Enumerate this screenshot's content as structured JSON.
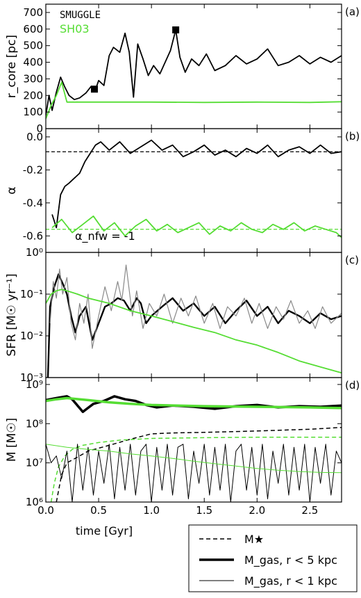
{
  "x_axis": {
    "label": "time [Gyr]",
    "ticks": [
      "0.0",
      "0.5",
      "1.0",
      "1.5",
      "2.0",
      "2.5"
    ],
    "tick_values": [
      0,
      0.5,
      1,
      1.5,
      2,
      2.5
    ],
    "range": [
      0,
      2.8
    ]
  },
  "colors": {
    "smuggle": "#000000",
    "sh03": "#55dd33",
    "smuggle_raw": "#888888"
  },
  "chart_data": [
    {
      "type": "line",
      "panel": "(a)",
      "ylabel": "r_core [pc]",
      "ylim": [
        0,
        750
      ],
      "yticks": [
        "0",
        "100",
        "200",
        "300",
        "400",
        "500",
        "600",
        "700"
      ],
      "ytick_values": [
        0,
        100,
        200,
        300,
        400,
        500,
        600,
        700
      ],
      "legend": [
        "SMUGGLE",
        "SH03"
      ],
      "series": [
        {
          "name": "SMUGGLE",
          "x": [
            0,
            0.03,
            0.06,
            0.1,
            0.14,
            0.18,
            0.22,
            0.27,
            0.32,
            0.38,
            0.43,
            0.47,
            0.5,
            0.55,
            0.6,
            0.64,
            0.7,
            0.75,
            0.79,
            0.83,
            0.87,
            0.92,
            0.97,
            1.02,
            1.08,
            1.13,
            1.18,
            1.23,
            1.27,
            1.32,
            1.38,
            1.45,
            1.52,
            1.6,
            1.7,
            1.8,
            1.9,
            2.0,
            2.1,
            2.2,
            2.3,
            2.4,
            2.5,
            2.6,
            2.7,
            2.8
          ],
          "y": [
            80,
            200,
            110,
            220,
            310,
            250,
            200,
            175,
            185,
            215,
            255,
            235,
            290,
            260,
            440,
            490,
            460,
            575,
            460,
            190,
            510,
            420,
            320,
            380,
            330,
            400,
            470,
            595,
            430,
            340,
            420,
            380,
            450,
            350,
            380,
            440,
            390,
            420,
            480,
            380,
            400,
            440,
            390,
            430,
            400,
            440
          ]
        },
        {
          "name": "SH03",
          "x": [
            0,
            0.05,
            0.1,
            0.15,
            0.2,
            0.3,
            0.5,
            1.0,
            1.5,
            2.0,
            2.5,
            2.8
          ],
          "y": [
            60,
            140,
            200,
            280,
            160,
            160,
            160,
            160,
            158,
            160,
            158,
            162
          ]
        }
      ],
      "markers": [
        {
          "x": 0.46,
          "y": 238
        },
        {
          "x": 1.23,
          "y": 595
        }
      ]
    },
    {
      "type": "line",
      "panel": "(b)",
      "ylabel": "α",
      "ylim": [
        -0.7,
        0.05
      ],
      "yticks": [
        "0.0",
        "-0.2",
        "-0.4",
        "-0.6"
      ],
      "ytick_values": [
        0,
        -0.2,
        -0.4,
        -0.6
      ],
      "annotation": "α_nfw = -1",
      "reference_lines": [
        {
          "name": "SMUGGLE mean",
          "y": -0.09
        },
        {
          "name": "SH03 mean",
          "y": -0.56
        }
      ],
      "series": [
        {
          "name": "SMUGGLE",
          "x": [
            0.06,
            0.1,
            0.14,
            0.18,
            0.22,
            0.27,
            0.32,
            0.37,
            0.42,
            0.47,
            0.52,
            0.6,
            0.7,
            0.8,
            0.9,
            1.0,
            1.1,
            1.2,
            1.3,
            1.4,
            1.5,
            1.6,
            1.7,
            1.8,
            1.9,
            2.0,
            2.1,
            2.2,
            2.3,
            2.4,
            2.5,
            2.6,
            2.7,
            2.8
          ],
          "y": [
            -0.47,
            -0.55,
            -0.35,
            -0.3,
            -0.28,
            -0.25,
            -0.22,
            -0.15,
            -0.1,
            -0.05,
            -0.03,
            -0.08,
            -0.03,
            -0.1,
            -0.06,
            -0.02,
            -0.08,
            -0.05,
            -0.12,
            -0.09,
            -0.05,
            -0.11,
            -0.08,
            -0.12,
            -0.07,
            -0.1,
            -0.05,
            -0.12,
            -0.08,
            -0.06,
            -0.1,
            -0.05,
            -0.1,
            -0.09
          ]
        },
        {
          "name": "SH03",
          "x": [
            0.06,
            0.15,
            0.25,
            0.35,
            0.45,
            0.55,
            0.65,
            0.75,
            0.85,
            0.95,
            1.05,
            1.15,
            1.25,
            1.35,
            1.45,
            1.55,
            1.65,
            1.75,
            1.85,
            1.95,
            2.05,
            2.15,
            2.25,
            2.35,
            2.45,
            2.55,
            2.65,
            2.75,
            2.8
          ],
          "y": [
            -0.55,
            -0.5,
            -0.58,
            -0.53,
            -0.48,
            -0.57,
            -0.52,
            -0.6,
            -0.54,
            -0.5,
            -0.57,
            -0.53,
            -0.58,
            -0.55,
            -0.52,
            -0.59,
            -0.54,
            -0.57,
            -0.52,
            -0.56,
            -0.58,
            -0.53,
            -0.56,
            -0.52,
            -0.57,
            -0.54,
            -0.56,
            -0.58,
            -0.61
          ]
        }
      ]
    },
    {
      "type": "line",
      "panel": "(c)",
      "ylabel": "SFR [M☉ yr⁻¹]",
      "yscale": "log",
      "ylim": [
        0.001,
        1
      ],
      "yticks": [
        "10⁰",
        "10⁻¹",
        "10⁻²",
        "10⁻³"
      ],
      "ytick_values": [
        1,
        0.1,
        0.01,
        0.001
      ],
      "series": [
        {
          "name": "SMUGGLE (smoothed)",
          "x": [
            0.02,
            0.04,
            0.08,
            0.12,
            0.16,
            0.2,
            0.24,
            0.28,
            0.32,
            0.38,
            0.44,
            0.5,
            0.56,
            0.62,
            0.68,
            0.74,
            0.8,
            0.86,
            0.9,
            0.95,
            1.0,
            1.1,
            1.2,
            1.3,
            1.4,
            1.5,
            1.6,
            1.7,
            1.8,
            1.9,
            2.0,
            2.1,
            2.2,
            2.3,
            2.4,
            2.5,
            2.6,
            2.7,
            2.8
          ],
          "y": [
            0.001,
            0.05,
            0.15,
            0.3,
            0.18,
            0.1,
            0.03,
            0.012,
            0.03,
            0.05,
            0.008,
            0.02,
            0.05,
            0.06,
            0.08,
            0.07,
            0.04,
            0.08,
            0.06,
            0.02,
            0.03,
            0.05,
            0.08,
            0.04,
            0.06,
            0.03,
            0.05,
            0.02,
            0.04,
            0.07,
            0.03,
            0.05,
            0.02,
            0.04,
            0.03,
            0.02,
            0.035,
            0.025,
            0.03
          ]
        },
        {
          "name": "SMUGGLE (raw)",
          "x": [
            0.04,
            0.07,
            0.1,
            0.13,
            0.16,
            0.2,
            0.24,
            0.28,
            0.32,
            0.36,
            0.4,
            0.44,
            0.5,
            0.56,
            0.62,
            0.68,
            0.72,
            0.76,
            0.82,
            0.86,
            0.92,
            0.98,
            1.05,
            1.12,
            1.2,
            1.28,
            1.35,
            1.42,
            1.5,
            1.58,
            1.65,
            1.72,
            1.8,
            1.88,
            1.95,
            2.02,
            2.1,
            2.18,
            2.25,
            2.32,
            2.4,
            2.48,
            2.55,
            2.62,
            2.7,
            2.8
          ],
          "y": [
            0.02,
            0.2,
            0.08,
            0.4,
            0.1,
            0.25,
            0.02,
            0.008,
            0.06,
            0.02,
            0.1,
            0.005,
            0.03,
            0.15,
            0.04,
            0.2,
            0.07,
            0.5,
            0.03,
            0.12,
            0.015,
            0.06,
            0.03,
            0.1,
            0.02,
            0.08,
            0.03,
            0.09,
            0.02,
            0.06,
            0.015,
            0.05,
            0.03,
            0.08,
            0.02,
            0.06,
            0.015,
            0.05,
            0.025,
            0.07,
            0.02,
            0.04,
            0.015,
            0.05,
            0.02,
            0.035
          ]
        },
        {
          "name": "SH03",
          "x": [
            0,
            0.05,
            0.1,
            0.15,
            0.2,
            0.3,
            0.4,
            0.6,
            0.8,
            1.0,
            1.2,
            1.4,
            1.6,
            1.8,
            2.0,
            2.2,
            2.4,
            2.6,
            2.8
          ],
          "y": [
            0.06,
            0.1,
            0.12,
            0.13,
            0.12,
            0.1,
            0.08,
            0.06,
            0.04,
            0.03,
            0.022,
            0.016,
            0.012,
            0.008,
            0.006,
            0.004,
            0.0025,
            0.0018,
            0.0013
          ]
        }
      ]
    },
    {
      "type": "line",
      "panel": "(d)",
      "ylabel": "M [M☉]",
      "yscale": "log",
      "ylim": [
        1000000,
        1500000000
      ],
      "yticks": [
        "10⁹",
        "10⁸",
        "10⁷",
        "10⁶"
      ],
      "ytick_values": [
        1000000000,
        100000000,
        10000000,
        1000000
      ],
      "legend": [
        "M★",
        "M_gas, r < 5 kpc",
        "M_gas, r < 1 kpc"
      ],
      "series": [
        {
          "name": "M★ SMUGGLE",
          "x": [
            0.1,
            0.15,
            0.2,
            0.3,
            0.4,
            0.6,
            0.8,
            1.0,
            1.2,
            1.5,
            2.0,
            2.5,
            2.8
          ],
          "y": [
            1000000,
            5000000,
            10000000,
            14000000,
            20000000,
            28000000,
            40000000,
            55000000,
            58000000,
            60000000,
            65000000,
            72000000,
            80000000
          ]
        },
        {
          "name": "M★ SH03",
          "x": [
            0.05,
            0.08,
            0.12,
            0.18,
            0.25,
            0.35,
            0.5,
            0.7,
            1.0,
            1.5,
            2.0,
            2.8
          ],
          "y": [
            1000000,
            3000000,
            8000000,
            15000000,
            22000000,
            28000000,
            33000000,
            38000000,
            42000000,
            44000000,
            45000000,
            45000000
          ]
        },
        {
          "name": "M_gas r<5 kpc SMUGGLE",
          "x": [
            0,
            0.1,
            0.2,
            0.25,
            0.35,
            0.45,
            0.55,
            0.65,
            0.75,
            0.85,
            0.95,
            1.05,
            1.2,
            1.4,
            1.6,
            1.8,
            2.0,
            2.2,
            2.4,
            2.6,
            2.8
          ],
          "y": [
            400000000,
            450000000,
            500000000,
            420000000,
            200000000,
            320000000,
            380000000,
            500000000,
            420000000,
            380000000,
            300000000,
            260000000,
            290000000,
            270000000,
            240000000,
            280000000,
            300000000,
            260000000,
            280000000,
            270000000,
            290000000
          ]
        },
        {
          "name": "M_gas r<5 kpc SH03",
          "x": [
            0,
            0.1,
            0.2,
            0.4,
            0.6,
            0.8,
            1.0,
            1.5,
            2.0,
            2.5,
            2.8
          ],
          "y": [
            380000000,
            420000000,
            450000000,
            400000000,
            350000000,
            320000000,
            300000000,
            280000000,
            270000000,
            260000000,
            250000000
          ]
        },
        {
          "name": "M_gas r<1 kpc SMUGGLE",
          "x": [
            0,
            0.05,
            0.1,
            0.15,
            0.2,
            0.25,
            0.3,
            0.35,
            0.4,
            0.45,
            0.5,
            0.55,
            0.6,
            0.65,
            0.7,
            0.75,
            0.8,
            0.85,
            0.9,
            0.95,
            1.0,
            1.05,
            1.1,
            1.15,
            1.2,
            1.25,
            1.3,
            1.35,
            1.4,
            1.45,
            1.5,
            1.55,
            1.6,
            1.65,
            1.7,
            1.75,
            1.8,
            1.85,
            1.9,
            1.95,
            2.0,
            2.05,
            2.1,
            2.15,
            2.2,
            2.25,
            2.3,
            2.35,
            2.4,
            2.45,
            2.5,
            2.55,
            2.6,
            2.65,
            2.7,
            2.75,
            2.8
          ],
          "y": [
            30000000,
            10000000,
            15000000,
            4000000,
            20000000,
            1000000,
            30000000,
            2000000,
            25000000,
            1500000,
            20000000,
            3000000,
            30000000,
            1200000,
            25000000,
            2000000,
            30000000,
            1500000,
            20000000,
            30000000,
            1000000,
            25000000,
            2000000,
            30000000,
            1500000,
            25000000,
            30000000,
            1200000,
            20000000,
            3000000,
            30000000,
            1500000,
            25000000,
            2000000,
            30000000,
            1000000,
            20000000,
            30000000,
            2000000,
            25000000,
            1500000,
            30000000,
            1200000,
            20000000,
            3000000,
            30000000,
            1500000,
            25000000,
            2000000,
            30000000,
            1000000,
            25000000,
            3000000,
            30000000,
            1500000,
            20000000,
            10000000
          ]
        },
        {
          "name": "M_gas r<1 kpc SH03",
          "x": [
            0,
            0.2,
            0.4,
            0.6,
            0.8,
            1.0,
            1.2,
            1.4,
            1.6,
            1.8,
            2.0,
            2.2,
            2.4,
            2.6,
            2.8
          ],
          "y": [
            30000000,
            25000000,
            22000000,
            20000000,
            17000000,
            15000000,
            13000000,
            11000000,
            9500000,
            8300000,
            7200000,
            6500000,
            6000000,
            5700000,
            5600000
          ]
        }
      ]
    }
  ]
}
